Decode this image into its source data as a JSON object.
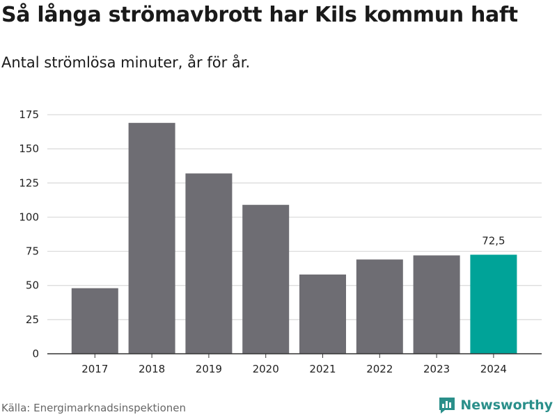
{
  "header": {
    "title": "Så långa strömavbrott har Kils kommun haft",
    "subtitle": "Antal strömlösa minuter, år för år."
  },
  "footer": {
    "source": "Källa: Energimarknadsinspektionen",
    "brand": "Newsworthy"
  },
  "colors": {
    "bar": "#6e6d73",
    "highlight": "#00a398",
    "grid": "#d9d9d9",
    "axis": "#333333",
    "brand": "#2a8f8a"
  },
  "chart_data": {
    "type": "bar",
    "title": "Så långa strömavbrott har Kils kommun haft",
    "subtitle": "Antal strömlösa minuter, år för år.",
    "xlabel": "",
    "ylabel": "",
    "categories": [
      "2017",
      "2018",
      "2019",
      "2020",
      "2021",
      "2022",
      "2023",
      "2024"
    ],
    "values": [
      48,
      169,
      132,
      109,
      58,
      69,
      72,
      72.5
    ],
    "ylim": [
      0,
      175
    ],
    "yticks": [
      0,
      25,
      50,
      75,
      100,
      125,
      150,
      175
    ],
    "ytick_labels": [
      "0",
      "25",
      "50",
      "75",
      "100",
      "125",
      "150",
      "175"
    ],
    "highlight_index": 7,
    "data_labels": [
      {
        "index": 7,
        "text": "72,5"
      }
    ],
    "grid": true
  }
}
